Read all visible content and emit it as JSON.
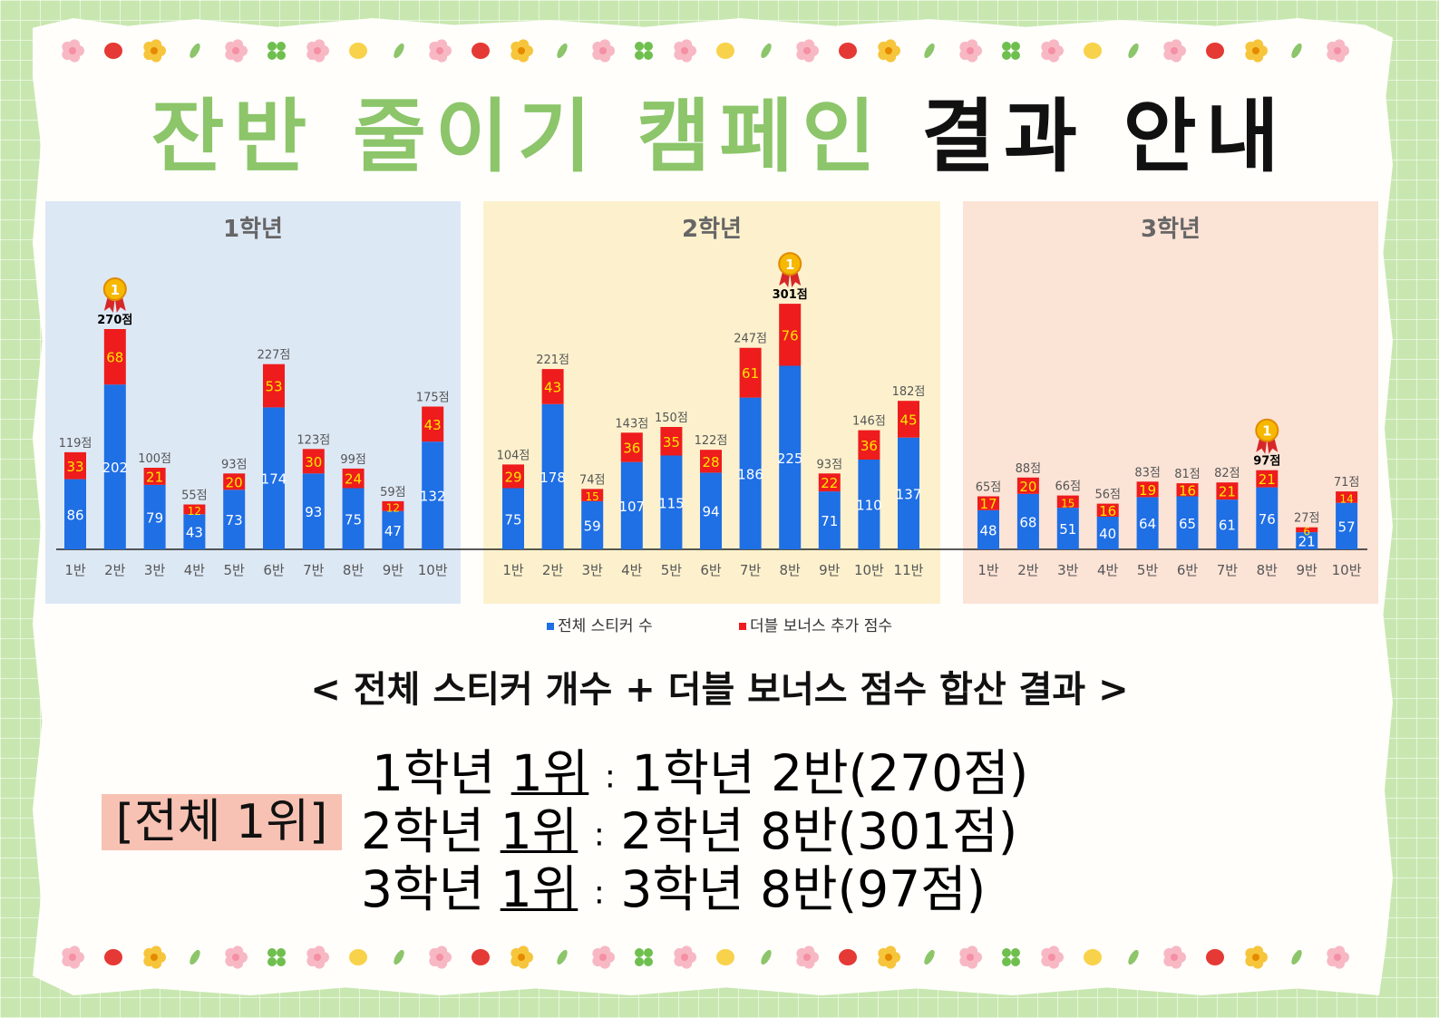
{
  "header": {
    "title_green": "잔반 줄이기 캠페인",
    "title_black": "결과 안내",
    "green_color": "#8cc56a"
  },
  "legend": {
    "total_label": "전체 스티커 수",
    "bonus_label": "더블 보너스 추가 점수",
    "total_color": "#1f6fe5",
    "bonus_color": "#ee1c1c"
  },
  "chart_data": [
    {
      "type": "bar",
      "stacked": true,
      "title": "1학년",
      "panel_color": "#dde8f5",
      "categories": [
        "1반",
        "2반",
        "3반",
        "4반",
        "5반",
        "6반",
        "7반",
        "8반",
        "9반",
        "10반"
      ],
      "series": [
        {
          "name": "전체 스티커 수",
          "values": [
            86,
            202,
            79,
            43,
            73,
            174,
            93,
            75,
            47,
            132
          ]
        },
        {
          "name": "더블 보너스 추가 점수",
          "values": [
            33,
            68,
            21,
            12,
            20,
            53,
            30,
            24,
            12,
            43
          ]
        }
      ],
      "totals": [
        "119점",
        "270점",
        "100점",
        "55점",
        "93점",
        "227점",
        "123점",
        "99점",
        "59점",
        "175점"
      ],
      "winner_index": 1
    },
    {
      "type": "bar",
      "stacked": true,
      "title": "2학년",
      "panel_color": "#fdf1cd",
      "categories": [
        "1반",
        "2반",
        "3반",
        "4반",
        "5반",
        "6반",
        "7반",
        "8반",
        "9반",
        "10반",
        "11반"
      ],
      "series": [
        {
          "name": "전체 스티커 수",
          "values": [
            75,
            178,
            59,
            107,
            115,
            94,
            186,
            225,
            71,
            110,
            137
          ]
        },
        {
          "name": "더블 보너스 추가 점수",
          "values": [
            29,
            43,
            15,
            36,
            35,
            28,
            61,
            76,
            22,
            36,
            45
          ]
        }
      ],
      "totals": [
        "104점",
        "221점",
        "74점",
        "143점",
        "150점",
        "122점",
        "247점",
        "301점",
        "93점",
        "146점",
        "182점"
      ],
      "winner_index": 7
    },
    {
      "type": "bar",
      "stacked": true,
      "title": "3학년",
      "panel_color": "#fbe3d6",
      "categories": [
        "1반",
        "2반",
        "3반",
        "4반",
        "5반",
        "6반",
        "7반",
        "8반",
        "9반",
        "10반"
      ],
      "series": [
        {
          "name": "전체 스티커 수",
          "values": [
            48,
            68,
            51,
            40,
            64,
            65,
            61,
            76,
            21,
            57
          ]
        },
        {
          "name": "더블 보너스 추가 점수",
          "values": [
            17,
            20,
            15,
            16,
            19,
            16,
            21,
            21,
            6,
            14
          ]
        }
      ],
      "totals": [
        "65점",
        "88점",
        "66점",
        "56점",
        "83점",
        "81점",
        "82점",
        "97점",
        "27점",
        "71점"
      ],
      "winner_index": 7
    }
  ],
  "summary": {
    "subtitle": "< 전체 스티커 개수 + 더블 보너스 점수 합산 결과 >",
    "overall_badge": "[전체 1위]",
    "rows": [
      {
        "grade": "1학년",
        "rank": "1위",
        "sep": ":",
        "result": "1학년 2반(270점)"
      },
      {
        "grade": "2학년",
        "rank": "1위",
        "sep": ":",
        "result": "2학년 8반(301점)"
      },
      {
        "grade": "3학년",
        "rank": "1위",
        "sep": ":",
        "result": "3학년 8반(97점)"
      }
    ]
  },
  "medal_number": "1"
}
